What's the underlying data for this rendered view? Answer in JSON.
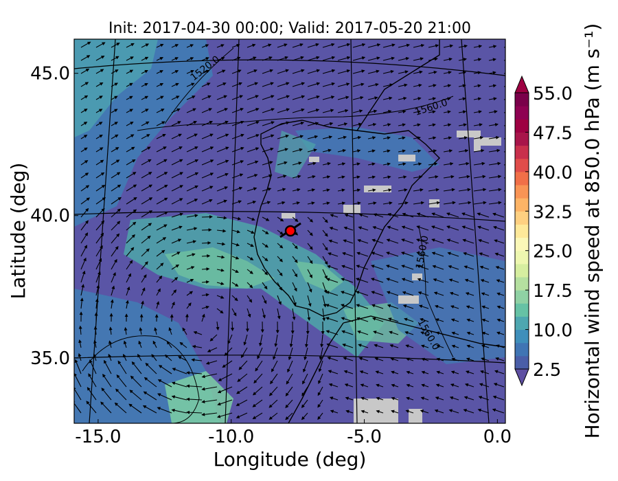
{
  "title": "Init: 2017-04-30 00:00; Valid: 2017-05-20 21:00",
  "xaxis": {
    "label": "Longitude (deg)",
    "ticks": [
      {
        "value": -15,
        "label": "-15.0"
      },
      {
        "value": -10,
        "label": "-10.0"
      },
      {
        "value": -5,
        "label": "-5.0"
      },
      {
        "value": 0,
        "label": "0.0"
      }
    ],
    "range": [
      -15.9,
      0.3
    ]
  },
  "yaxis": {
    "label": "Latitude (deg)",
    "ticks": [
      {
        "value": 35,
        "label": "35.0"
      },
      {
        "value": 40,
        "label": "40.0"
      },
      {
        "value": 45,
        "label": "45.0"
      }
    ],
    "range": [
      32.7,
      46.2
    ]
  },
  "colorbar": {
    "label": "Horizontal wind speed at 850.0 hPa (m s⁻¹)",
    "min": 2.5,
    "max": 55.0,
    "step": 2.5,
    "extend": "both",
    "tick_labels": [
      "2.5",
      "10.0",
      "17.5",
      "25.0",
      "32.5",
      "40.0",
      "47.5",
      "55.0"
    ],
    "colormap": "Spectral_r"
  },
  "contours": {
    "variable": "geopotential height",
    "labels": [
      "1520.0",
      "1560.0",
      "1560.0",
      "1560.0"
    ]
  },
  "marker": {
    "lon": -7.7,
    "lat": 39.4,
    "color": "#ff0000"
  },
  "colors": {
    "background_field": "#5a57a8",
    "land_outline": "#000000",
    "missing_data": "#c8c8c8"
  }
}
